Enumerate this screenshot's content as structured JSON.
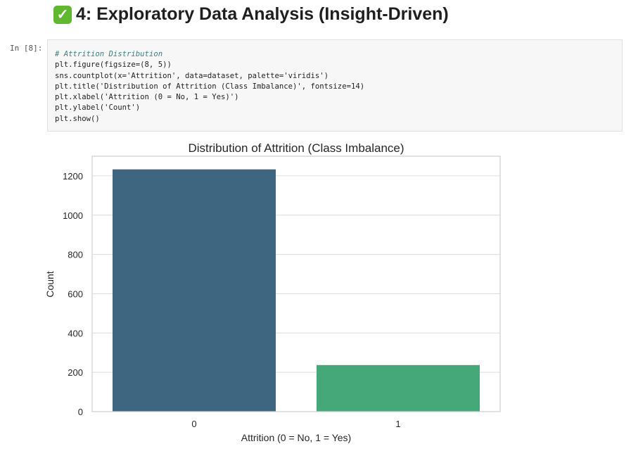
{
  "heading": {
    "icon": "check-mark-button-icon",
    "text": "4: Exploratory Data Analysis (Insight-Driven)"
  },
  "cell": {
    "prompt": "In [8]:",
    "code": [
      "# Attrition Distribution",
      "plt.figure(figsize=(8, 5))",
      "sns.countplot(x='Attrition', data=dataset, palette='viridis')",
      "plt.title('Distribution of Attrition (Class Imbalance)', fontsize=14)",
      "plt.xlabel('Attrition (0 = No, 1 = Yes)')",
      "plt.ylabel('Count')",
      "plt.show()"
    ]
  },
  "chart_data": {
    "type": "bar",
    "title": "Distribution of Attrition (Class Imbalance)",
    "xlabel": "Attrition (0 = No, 1 = Yes)",
    "ylabel": "Count",
    "categories": [
      "0",
      "1"
    ],
    "values": [
      1233,
      237
    ],
    "colors": [
      "#3e6680",
      "#44a878"
    ],
    "ylim": [
      0,
      1300
    ],
    "yticks": [
      0,
      200,
      400,
      600,
      800,
      1000,
      1200
    ],
    "grid": true
  }
}
